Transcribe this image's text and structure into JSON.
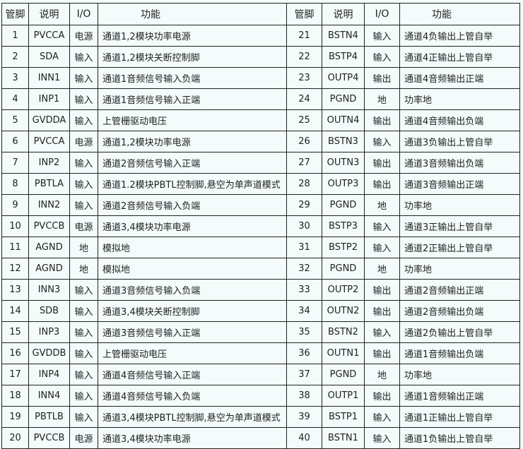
{
  "headers": {
    "pin": "管脚",
    "desc": "说明",
    "io": "I/O",
    "func": "功能"
  },
  "rows": [
    {
      "l": [
        "1",
        "PVCCA",
        "电源",
        "通道1,2模块功率电源"
      ],
      "r": [
        "21",
        "BSTN4",
        "输入",
        "通道4负输出上管自举"
      ]
    },
    {
      "l": [
        "2",
        "SDA",
        "输入",
        "通道1,2模块关断控制脚"
      ],
      "r": [
        "22",
        "BSTP4",
        "输入",
        "通道4正输出上管自举"
      ]
    },
    {
      "l": [
        "3",
        "INN1",
        "输入",
        "通道1音频信号输入负端"
      ],
      "r": [
        "23",
        "OUTP4",
        "输出",
        "通道4音频输出正端"
      ]
    },
    {
      "l": [
        "4",
        "INP1",
        "输入",
        "通道1音频信号输入正端"
      ],
      "r": [
        "24",
        "PGND",
        "地",
        "功率地"
      ]
    },
    {
      "l": [
        "5",
        "GVDDA",
        "输入",
        "上管栅驱动电压"
      ],
      "r": [
        "25",
        "OUTN4",
        "输出",
        "通道4音频输出负端"
      ]
    },
    {
      "l": [
        "6",
        "PVCCA",
        "电源",
        "通道1,2模块功率电源"
      ],
      "r": [
        "26",
        "BSTN3",
        "输入",
        "通道3负输出上管自举"
      ]
    },
    {
      "l": [
        "7",
        "INP2",
        "输入",
        "通道2音频信号输入正端"
      ],
      "r": [
        "27",
        "OUTN3",
        "输出",
        "通道3音频输出负端"
      ]
    },
    {
      "l": [
        "8",
        "PBTLA",
        "输入",
        "通道1.2模块PBTL控制脚,悬空为单声道模式"
      ],
      "r": [
        "28",
        "OUTP3",
        "输出",
        "通道3音频输出正端"
      ]
    },
    {
      "l": [
        "9",
        "INN2",
        "输入",
        "通道2音频信号输入负端"
      ],
      "r": [
        "29",
        "PGND",
        "地",
        "功率地"
      ]
    },
    {
      "l": [
        "10",
        "PVCCB",
        "电源",
        "通道3,4模块功率电源"
      ],
      "r": [
        "30",
        "BSTP3",
        "输入",
        "通道3正输出上管自举"
      ]
    },
    {
      "l": [
        "11",
        "AGND",
        "地",
        "模拟地"
      ],
      "r": [
        "31",
        "BSTP2",
        "输入",
        "通道2正输出上管自举"
      ]
    },
    {
      "l": [
        "12",
        "AGND",
        "地",
        "模拟地"
      ],
      "r": [
        "32",
        "PGND",
        "地",
        "功率地"
      ]
    },
    {
      "l": [
        "13",
        "INN3",
        "输入",
        "通道3音频信号输入负端"
      ],
      "r": [
        "33",
        "OUTP2",
        "输出",
        "通道2音频输出正端"
      ]
    },
    {
      "l": [
        "14",
        "SDB",
        "输入",
        "通道3,4模块关断控制脚"
      ],
      "r": [
        "34",
        "OUTN2",
        "输出",
        "通道2音频输出负端"
      ]
    },
    {
      "l": [
        "15",
        "INP3",
        "输入",
        "通道3音频信号输入正端"
      ],
      "r": [
        "35",
        "BSTN2",
        "输入",
        "通道2负输出上管自举"
      ]
    },
    {
      "l": [
        "16",
        "GVDDB",
        "输入",
        "上管栅驱动电压"
      ],
      "r": [
        "36",
        "OUTN1",
        "输出",
        "通道1音频输出负端"
      ]
    },
    {
      "l": [
        "17",
        "INP4",
        "输入",
        "通道4音频信号输入正端"
      ],
      "r": [
        "37",
        "PGND",
        "地",
        "功率地"
      ]
    },
    {
      "l": [
        "18",
        "INN4",
        "输入",
        "通道4音频信号输入负端"
      ],
      "r": [
        "38",
        "OUTP1",
        "输出",
        "通道1音频输出正端"
      ]
    },
    {
      "l": [
        "19",
        "PBTLB",
        "输入",
        "通道3,4模块PBTL控制脚,悬空为单声道模式"
      ],
      "r": [
        "39",
        "BSTP1",
        "输入",
        "通道1正输出上管自举"
      ]
    },
    {
      "l": [
        "20",
        "PVCCB",
        "电源",
        "通道3,4模块功率电源"
      ],
      "r": [
        "40",
        "BSTN1",
        "输入",
        "通道1负输出上管自举"
      ]
    }
  ]
}
